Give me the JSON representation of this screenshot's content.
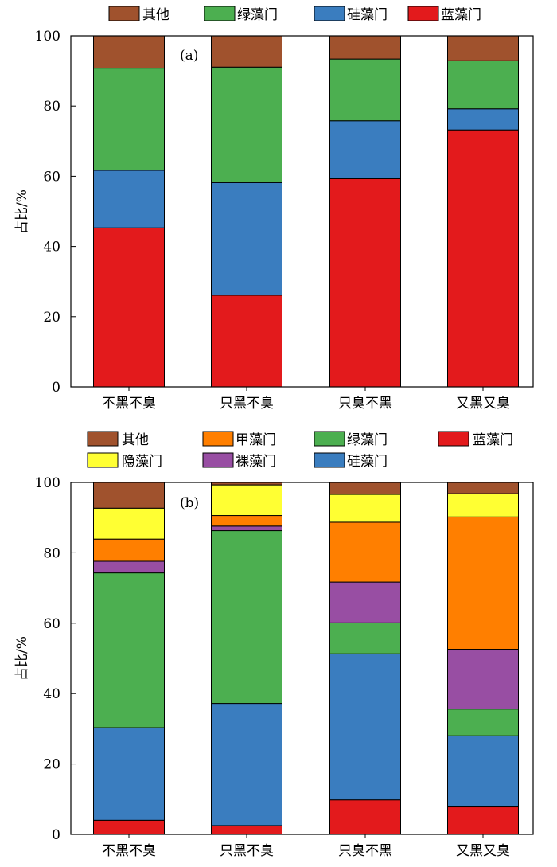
{
  "chart_data": [
    {
      "type": "bar",
      "stacked": true,
      "panel_label": "(a)",
      "ylabel": "占比/%",
      "ylim": [
        0,
        100
      ],
      "yticks": [
        0,
        20,
        40,
        60,
        80,
        100
      ],
      "categories": [
        "不黑不臭",
        "只黑不臭",
        "只臭不黑",
        "又黑又臭"
      ],
      "series": [
        {
          "name": "蓝藻门",
          "color": "#e31a1c",
          "values": [
            45.3,
            26.1,
            59.3,
            73.2
          ]
        },
        {
          "name": "硅藻门",
          "color": "#3a7dbf",
          "values": [
            16.4,
            32.1,
            16.5,
            6.0
          ]
        },
        {
          "name": "绿藻门",
          "color": "#4caf50",
          "values": [
            29.1,
            32.9,
            17.6,
            13.7
          ]
        },
        {
          "name": "其他",
          "color": "#a0522d",
          "values": [
            9.2,
            8.9,
            6.6,
            7.1
          ]
        }
      ],
      "legend": {
        "order": [
          "其他",
          "绿藻门",
          "硅藻门",
          "蓝藻门"
        ],
        "placement": "top"
      }
    },
    {
      "type": "bar",
      "stacked": true,
      "panel_label": "(b)",
      "ylabel": "占比/%",
      "ylim": [
        0,
        100
      ],
      "yticks": [
        0,
        20,
        40,
        60,
        80,
        100
      ],
      "categories": [
        "不黑不臭",
        "只黑不臭",
        "只臭不黑",
        "又黑又臭"
      ],
      "series": [
        {
          "name": "蓝藻门",
          "color": "#e31a1c",
          "values": [
            4.0,
            2.5,
            9.8,
            7.8
          ]
        },
        {
          "name": "硅藻门",
          "color": "#3a7dbf",
          "values": [
            26.3,
            34.7,
            41.5,
            20.2
          ]
        },
        {
          "name": "绿藻门",
          "color": "#4caf50",
          "values": [
            44.0,
            49.1,
            8.8,
            7.6
          ]
        },
        {
          "name": "裸藻门",
          "color": "#984ea3",
          "values": [
            3.3,
            1.3,
            11.6,
            17.0
          ]
        },
        {
          "name": "甲藻门",
          "color": "#ff7f00",
          "values": [
            6.3,
            3.0,
            17.0,
            37.6
          ]
        },
        {
          "name": "隐藻门",
          "color": "#ffff33",
          "values": [
            8.8,
            8.7,
            7.9,
            6.6
          ]
        },
        {
          "name": "其他",
          "color": "#a0522d",
          "values": [
            7.3,
            0.7,
            3.4,
            3.2
          ]
        }
      ],
      "legend": {
        "order": [
          "其他",
          "甲藻门",
          "绿藻门",
          "蓝藻门",
          "隐藻门",
          "裸藻门",
          "硅藻门"
        ],
        "placement": "top"
      }
    }
  ]
}
